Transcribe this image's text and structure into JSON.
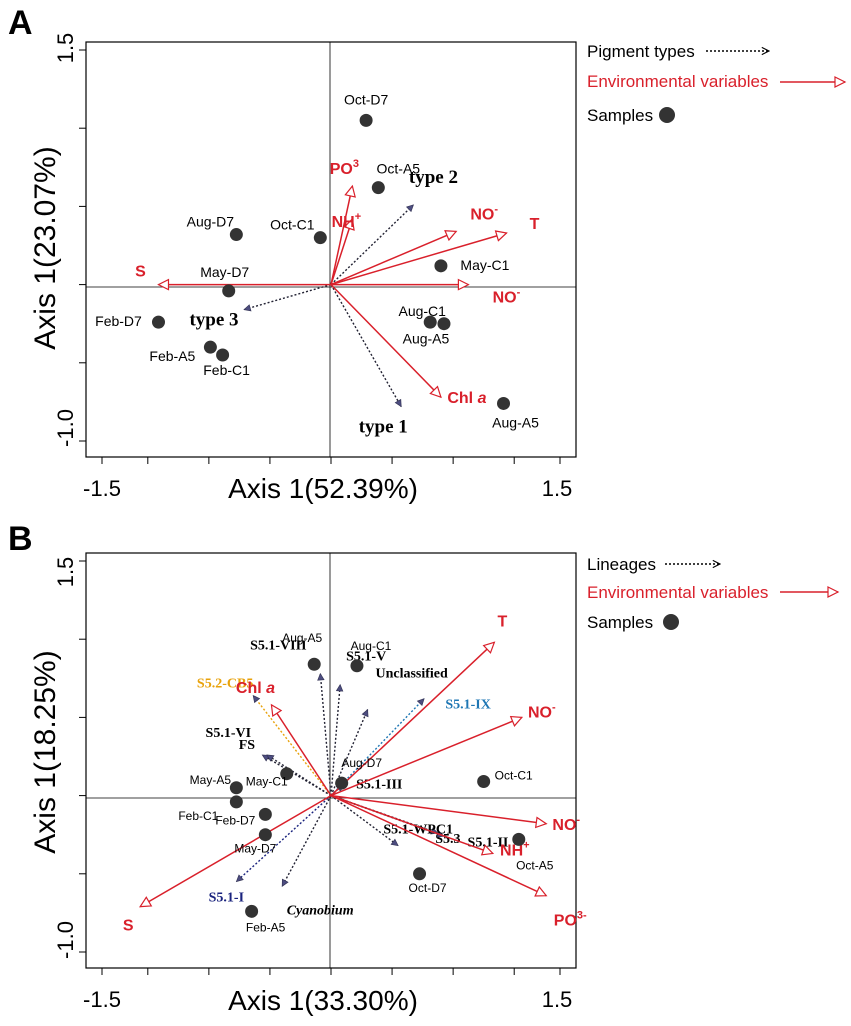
{
  "chart_data": [
    {
      "panel": "A",
      "type": "scatter",
      "title": "",
      "xlabel": "Axis 1(52.39%)",
      "ylabel": "Axis 1(23.07%)",
      "xlim": [
        -1.5,
        1.5
      ],
      "ylim": [
        -1.0,
        1.5
      ],
      "xticks": [
        "-1.5",
        "1.5"
      ],
      "yticks": [
        "1.5",
        "-1.0"
      ],
      "legend": {
        "position": "right",
        "items": [
          {
            "label": "Pigment types",
            "kind": "dotted-arrow"
          },
          {
            "label": "Environmental variables",
            "kind": "red-arrow"
          },
          {
            "label": "Samples",
            "kind": "dot"
          }
        ]
      },
      "samples": [
        {
          "label": "Oct-D7",
          "x": 0.23,
          "y": 1.05
        },
        {
          "label": "Oct-A5",
          "x": 0.31,
          "y": 0.62
        },
        {
          "label": "Oct-C1",
          "x": -0.07,
          "y": 0.3
        },
        {
          "label": "Aug-D7",
          "x": -0.62,
          "y": 0.32
        },
        {
          "label": "May-D7",
          "x": -0.67,
          "y": -0.04
        },
        {
          "label": "Feb-D7",
          "x": -1.13,
          "y": -0.24
        },
        {
          "label": "Feb-A5",
          "x": -0.79,
          "y": -0.4
        },
        {
          "label": "Feb-C1",
          "x": -0.71,
          "y": -0.45
        },
        {
          "label": "May-C1",
          "x": 0.72,
          "y": 0.12
        },
        {
          "label": "Aug-C1",
          "x": 0.65,
          "y": -0.24
        },
        {
          "label": "Aug-A5",
          "x": 0.74,
          "y": -0.25
        },
        {
          "label": "Aug-A5",
          "x": 1.13,
          "y": -0.76
        }
      ],
      "lineages": [
        {
          "label": "type 2",
          "x": 0.54,
          "y": 0.51,
          "color": "#000000"
        },
        {
          "label": "type 3",
          "x": -0.57,
          "y": -0.16,
          "color": "#000000"
        },
        {
          "label": "type 1",
          "x": 0.46,
          "y": -0.78,
          "color": "#000000"
        }
      ],
      "variables": [
        {
          "label": "PO",
          "superscript": "3",
          "x": 0.14,
          "y": 0.63
        },
        {
          "label": "NH",
          "superscript": "+",
          "x": 0.14,
          "y": 0.42
        },
        {
          "label": "NO",
          "superscript": "-",
          "x": 0.82,
          "y": 0.34
        },
        {
          "label": "T",
          "x": 1.15,
          "y": 0.33
        },
        {
          "label": "NO",
          "superscript": "-",
          "x": 0.9,
          "y": 0.0
        },
        {
          "label": "S",
          "x": -1.13,
          "y": 0.0
        },
        {
          "label": "Chl a",
          "x": 0.72,
          "y": -0.72
        }
      ]
    },
    {
      "panel": "B",
      "type": "scatter",
      "title": "",
      "xlabel": "Axis 1(33.30%)",
      "ylabel": "Axis 1(18.25%)",
      "xlim": [
        -1.5,
        1.5
      ],
      "ylim": [
        -1.0,
        1.5
      ],
      "xticks": [
        "-1.5",
        "1.5"
      ],
      "yticks": [
        "1.5",
        "-1.0"
      ],
      "legend": {
        "position": "right",
        "items": [
          {
            "label": "Lineages",
            "kind": "dotted-arrow"
          },
          {
            "label": "Environmental variables",
            "kind": "red-arrow"
          },
          {
            "label": "Samples",
            "kind": "dot"
          }
        ]
      },
      "samples": [
        {
          "label": "Aug-A5",
          "x": -0.11,
          "y": 0.84
        },
        {
          "label": "Aug-C1",
          "x": 0.17,
          "y": 0.83
        },
        {
          "label": "Aug-D7",
          "x": 0.07,
          "y": 0.08
        },
        {
          "label": "Oct-C1",
          "x": 1.0,
          "y": 0.09
        },
        {
          "label": "Oct-A5",
          "x": 1.23,
          "y": -0.28
        },
        {
          "label": "Oct-D7",
          "x": 0.58,
          "y": -0.5
        },
        {
          "label": "May-A5",
          "x": -0.62,
          "y": 0.05
        },
        {
          "label": "May-C1",
          "x": -0.29,
          "y": 0.14
        },
        {
          "label": "Feb-C1",
          "x": -0.62,
          "y": -0.04
        },
        {
          "label": "Feb-D7",
          "x": -0.43,
          "y": -0.12
        },
        {
          "label": "May-D7",
          "x": -0.43,
          "y": -0.25
        },
        {
          "label": "Feb-A5",
          "x": -0.52,
          "y": -0.74
        }
      ],
      "lineages": [
        {
          "label": "S5.2-CB5",
          "x": -0.51,
          "y": 0.64,
          "color": "#e8a20b"
        },
        {
          "label": "S5.1-VIII",
          "x": -0.07,
          "y": 0.78,
          "color": "#000000"
        },
        {
          "label": "S5.1-V",
          "x": 0.06,
          "y": 0.71,
          "color": "#000000"
        },
        {
          "label": "Unclassified",
          "x": 0.24,
          "y": 0.55,
          "color": "#000000"
        },
        {
          "label": "S5.1-IX",
          "x": 0.61,
          "y": 0.62,
          "color": "#1f77b4"
        },
        {
          "label": "S5.1-VI",
          "x": -0.45,
          "y": 0.26,
          "color": "#000000"
        },
        {
          "label": "FS",
          "x": -0.42,
          "y": 0.26,
          "color": "#000000"
        },
        {
          "label": "S5.1-III",
          "x": 0.08,
          "y": 0.07,
          "color": "#000000"
        },
        {
          "label": "S5.3",
          "x": 0.7,
          "y": -0.24,
          "color": "#000000"
        },
        {
          "label": "S5.1-II",
          "x": 0.74,
          "y": -0.26,
          "color": "#000000"
        },
        {
          "label": "S5.1-WPC1",
          "x": 0.44,
          "y": -0.32,
          "color": "#000000"
        },
        {
          "label": "S5.1-I",
          "x": -0.62,
          "y": -0.55,
          "color": "#1a237e"
        },
        {
          "label": "Cyanobium",
          "x": -0.32,
          "y": -0.58,
          "color": "#000000",
          "italic": true
        }
      ],
      "variables": [
        {
          "label": "T",
          "x": 1.07,
          "y": 0.98
        },
        {
          "label": "NO",
          "superscript": "-",
          "x": 1.25,
          "y": 0.5
        },
        {
          "label": "Chl a",
          "x": -0.39,
          "y": 0.58
        },
        {
          "label": "NO",
          "superscript": "-",
          "x": 1.41,
          "y": -0.18
        },
        {
          "label": "NH",
          "superscript": "+",
          "x": 1.06,
          "y": -0.37
        },
        {
          "label": "PO",
          "superscript": "3-",
          "x": 1.41,
          "y": -0.64
        },
        {
          "label": "S",
          "x": -1.25,
          "y": -0.71
        }
      ]
    }
  ]
}
